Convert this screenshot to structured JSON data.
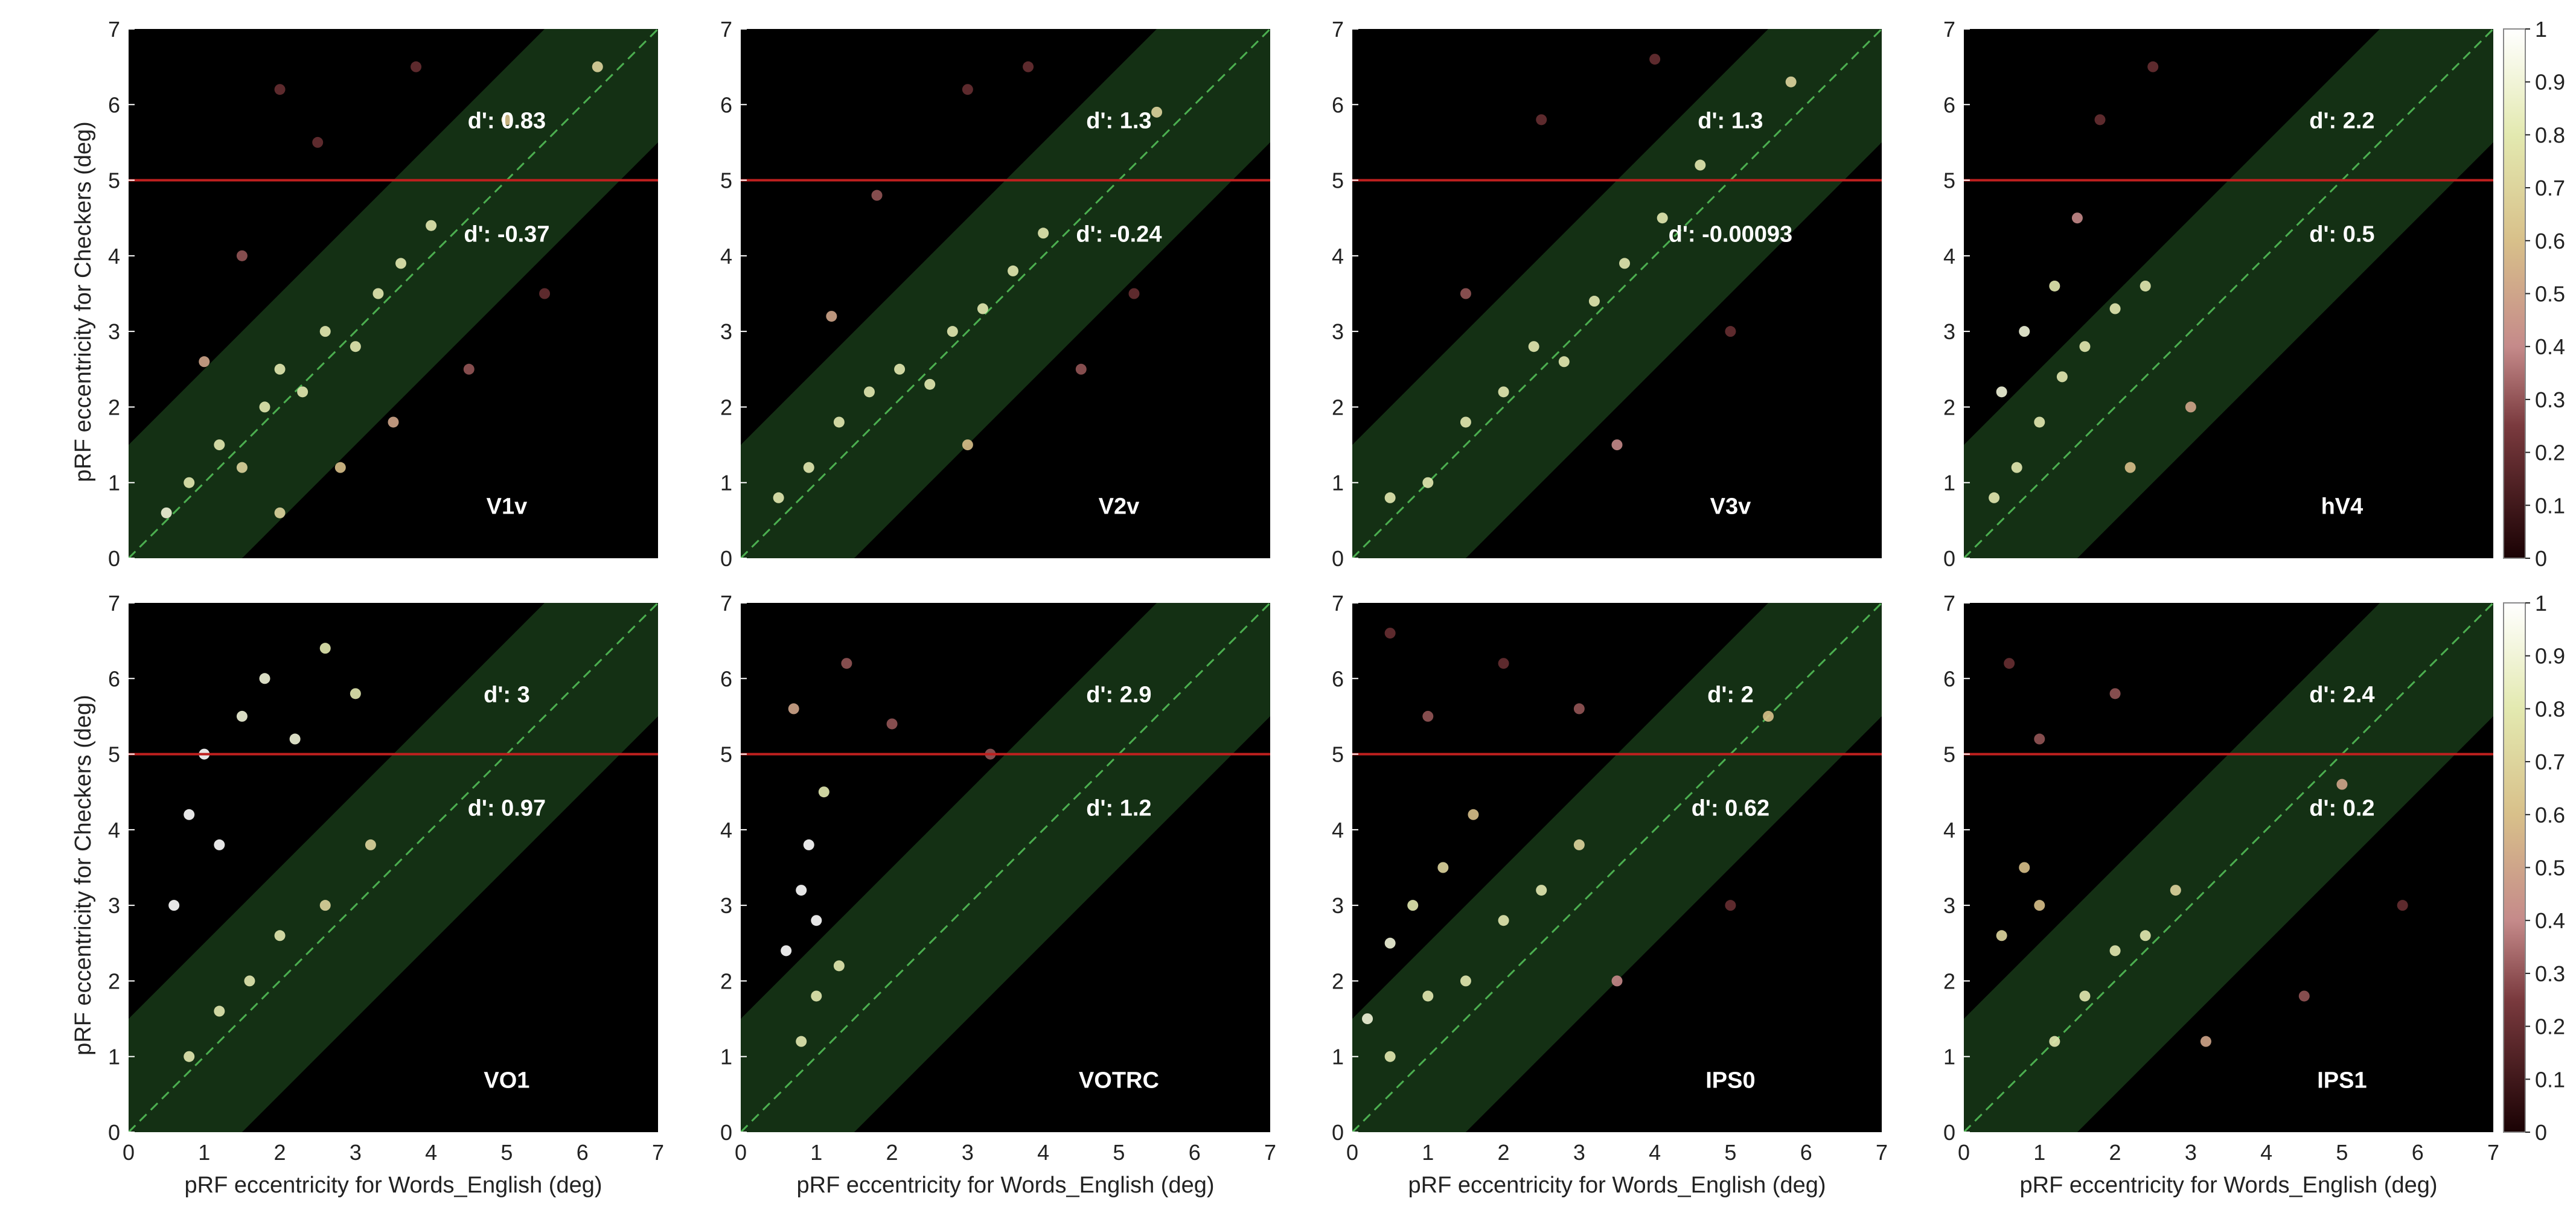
{
  "figure": {
    "shared_ylabel": "pRF eccentricity for Checkers (deg)",
    "shared_xlabel": "pRF eccentricity for Words_English (deg)",
    "colorbar_ticks": [
      "0",
      "0.1",
      "0.2",
      "0.3",
      "0.4",
      "0.5",
      "0.6",
      "0.7",
      "0.8",
      "0.9",
      "1"
    ]
  },
  "chart_data": [
    {
      "type": "scatter",
      "label": "V1v",
      "dprime_upper": "d': 0.83",
      "dprime_lower": "d': -0.37",
      "threshold_y": 5,
      "xlim": [
        0,
        7
      ],
      "ylim": [
        0,
        7
      ],
      "xticks": [
        "0",
        "1",
        "2",
        "3",
        "4",
        "5",
        "6",
        "7"
      ],
      "yticks": [
        "0",
        "1",
        "2",
        "3",
        "4",
        "5",
        "6",
        "7"
      ],
      "points": [
        [
          0.5,
          0.6,
          0.9
        ],
        [
          0.8,
          1.0,
          0.8
        ],
        [
          1.2,
          1.5,
          0.8
        ],
        [
          1.5,
          1.2,
          0.7
        ],
        [
          1.8,
          2.0,
          0.8
        ],
        [
          2.0,
          2.5,
          0.8
        ],
        [
          2.3,
          2.2,
          0.8
        ],
        [
          2.6,
          3.0,
          0.8
        ],
        [
          3.0,
          2.8,
          0.8
        ],
        [
          3.3,
          3.5,
          0.8
        ],
        [
          3.6,
          3.9,
          0.8
        ],
        [
          4.0,
          4.4,
          0.8
        ],
        [
          1.0,
          2.6,
          0.5
        ],
        [
          1.5,
          4.0,
          0.3
        ],
        [
          2.5,
          5.5,
          0.2
        ],
        [
          2.0,
          6.2,
          0.2
        ],
        [
          3.8,
          6.5,
          0.2
        ],
        [
          2.0,
          0.6,
          0.7
        ],
        [
          2.8,
          1.2,
          0.6
        ],
        [
          3.5,
          1.8,
          0.5
        ],
        [
          4.5,
          2.5,
          0.3
        ],
        [
          5.5,
          3.5,
          0.2
        ],
        [
          5.0,
          5.8,
          0.6
        ],
        [
          6.2,
          6.5,
          0.7
        ]
      ],
      "band_halfwidth": 1.5
    },
    {
      "type": "scatter",
      "label": "V2v",
      "dprime_upper": "d': 1.3",
      "dprime_lower": "d': -0.24",
      "threshold_y": 5,
      "xlim": [
        0,
        7
      ],
      "ylim": [
        0,
        7
      ],
      "xticks": [
        "0",
        "1",
        "2",
        "3",
        "4",
        "5",
        "6",
        "7"
      ],
      "yticks": [
        "0",
        "1",
        "2",
        "3",
        "4",
        "5",
        "6",
        "7"
      ],
      "points": [
        [
          0.5,
          0.8,
          0.8
        ],
        [
          0.9,
          1.2,
          0.8
        ],
        [
          1.3,
          1.8,
          0.8
        ],
        [
          1.7,
          2.2,
          0.8
        ],
        [
          2.1,
          2.5,
          0.8
        ],
        [
          2.5,
          2.3,
          0.8
        ],
        [
          2.8,
          3.0,
          0.8
        ],
        [
          3.2,
          3.3,
          0.8
        ],
        [
          3.6,
          3.8,
          0.8
        ],
        [
          4.0,
          4.3,
          0.8
        ],
        [
          1.2,
          3.2,
          0.5
        ],
        [
          1.8,
          4.8,
          0.3
        ],
        [
          3.0,
          6.2,
          0.2
        ],
        [
          3.8,
          6.5,
          0.2
        ],
        [
          3.0,
          1.5,
          0.6
        ],
        [
          4.5,
          2.5,
          0.3
        ],
        [
          5.2,
          3.5,
          0.2
        ],
        [
          5.5,
          5.9,
          0.7
        ]
      ],
      "band_halfwidth": 1.5
    },
    {
      "type": "scatter",
      "label": "V3v",
      "dprime_upper": "d': 1.3",
      "dprime_lower": "d': -0.00093",
      "threshold_y": 5,
      "xlim": [
        0,
        7
      ],
      "ylim": [
        0,
        7
      ],
      "xticks": [
        "0",
        "1",
        "2",
        "3",
        "4",
        "5",
        "6",
        "7"
      ],
      "yticks": [
        "0",
        "1",
        "2",
        "3",
        "4",
        "5",
        "6",
        "7"
      ],
      "points": [
        [
          0.5,
          0.8,
          0.8
        ],
        [
          1.0,
          1.0,
          0.8
        ],
        [
          1.5,
          1.8,
          0.8
        ],
        [
          2.0,
          2.2,
          0.8
        ],
        [
          2.4,
          2.8,
          0.8
        ],
        [
          2.8,
          2.6,
          0.8
        ],
        [
          3.2,
          3.4,
          0.8
        ],
        [
          3.6,
          3.9,
          0.8
        ],
        [
          4.1,
          4.5,
          0.8
        ],
        [
          4.6,
          5.2,
          0.8
        ],
        [
          1.5,
          3.5,
          0.3
        ],
        [
          2.5,
          5.8,
          0.2
        ],
        [
          4.0,
          6.6,
          0.2
        ],
        [
          3.5,
          1.5,
          0.4
        ],
        [
          5.0,
          3.0,
          0.2
        ],
        [
          5.8,
          6.3,
          0.7
        ]
      ],
      "band_halfwidth": 1.5
    },
    {
      "type": "scatter",
      "label": "hV4",
      "dprime_upper": "d': 2.2",
      "dprime_lower": "d': 0.5",
      "threshold_y": 5,
      "xlim": [
        0,
        7
      ],
      "ylim": [
        0,
        7
      ],
      "xticks": [
        "0",
        "1",
        "2",
        "3",
        "4",
        "5",
        "6",
        "7"
      ],
      "yticks": [
        "0",
        "1",
        "2",
        "3",
        "4",
        "5",
        "6",
        "7"
      ],
      "points": [
        [
          0.4,
          0.8,
          0.8
        ],
        [
          0.7,
          1.2,
          0.8
        ],
        [
          1.0,
          1.8,
          0.8
        ],
        [
          1.3,
          2.4,
          0.8
        ],
        [
          1.6,
          2.8,
          0.8
        ],
        [
          2.0,
          3.3,
          0.8
        ],
        [
          2.4,
          3.6,
          0.8
        ],
        [
          0.5,
          2.2,
          0.9
        ],
        [
          0.8,
          3.0,
          0.9
        ],
        [
          1.2,
          3.6,
          0.8
        ],
        [
          1.5,
          4.5,
          0.4
        ],
        [
          1.8,
          5.8,
          0.2
        ],
        [
          2.5,
          6.5,
          0.2
        ],
        [
          2.2,
          1.2,
          0.6
        ],
        [
          3.0,
          2.0,
          0.5
        ]
      ],
      "band_halfwidth": 1.5
    },
    {
      "type": "scatter",
      "label": "VO1",
      "dprime_upper": "d': 3",
      "dprime_lower": "d': 0.97",
      "threshold_y": 5,
      "xlim": [
        0,
        7
      ],
      "ylim": [
        0,
        7
      ],
      "xticks": [
        "0",
        "1",
        "2",
        "3",
        "4",
        "5",
        "6",
        "7"
      ],
      "yticks": [
        "0",
        "1",
        "2",
        "3",
        "4",
        "5",
        "6",
        "7"
      ],
      "points": [
        [
          0.6,
          3.0,
          1.0
        ],
        [
          0.8,
          4.2,
          1.0
        ],
        [
          1.0,
          5.0,
          1.0
        ],
        [
          1.2,
          3.8,
          1.0
        ],
        [
          1.5,
          5.5,
          0.9
        ],
        [
          1.8,
          6.0,
          0.9
        ],
        [
          2.2,
          5.2,
          0.9
        ],
        [
          2.6,
          6.4,
          0.8
        ],
        [
          3.0,
          5.8,
          0.8
        ],
        [
          0.8,
          1.0,
          0.8
        ],
        [
          1.2,
          1.6,
          0.8
        ],
        [
          1.6,
          2.0,
          0.8
        ],
        [
          2.0,
          2.6,
          0.8
        ],
        [
          2.6,
          3.0,
          0.7
        ],
        [
          3.2,
          3.8,
          0.7
        ]
      ],
      "band_halfwidth": 1.5
    },
    {
      "type": "scatter",
      "label": "VOTRC",
      "dprime_upper": "d': 2.9",
      "dprime_lower": "d': 1.2",
      "threshold_y": 5,
      "xlim": [
        0,
        7
      ],
      "ylim": [
        0,
        7
      ],
      "xticks": [
        "0",
        "1",
        "2",
        "3",
        "4",
        "5",
        "6",
        "7"
      ],
      "yticks": [
        "0",
        "1",
        "2",
        "3",
        "4",
        "5",
        "6",
        "7"
      ],
      "points": [
        [
          0.6,
          2.4,
          1.0
        ],
        [
          0.8,
          3.2,
          1.0
        ],
        [
          0.9,
          3.8,
          1.0
        ],
        [
          1.0,
          2.8,
          1.0
        ],
        [
          1.1,
          4.5,
          0.8
        ],
        [
          0.7,
          5.6,
          0.5
        ],
        [
          1.4,
          6.2,
          0.3
        ],
        [
          0.8,
          1.2,
          0.8
        ],
        [
          1.0,
          1.8,
          0.8
        ],
        [
          1.3,
          2.2,
          0.8
        ],
        [
          2.0,
          5.4,
          0.3
        ],
        [
          3.3,
          5.0,
          0.3
        ]
      ],
      "band_halfwidth": 1.5
    },
    {
      "type": "scatter",
      "label": "IPS0",
      "dprime_upper": "d': 2",
      "dprime_lower": "d': 0.62",
      "threshold_y": 5,
      "xlim": [
        0,
        7
      ],
      "ylim": [
        0,
        7
      ],
      "xticks": [
        "0",
        "1",
        "2",
        "3",
        "4",
        "5",
        "6",
        "7"
      ],
      "yticks": [
        "0",
        "1",
        "2",
        "3",
        "4",
        "5",
        "6",
        "7"
      ],
      "points": [
        [
          0.2,
          1.5,
          0.9
        ],
        [
          0.5,
          2.5,
          0.9
        ],
        [
          0.8,
          3.0,
          0.8
        ],
        [
          1.2,
          3.5,
          0.7
        ],
        [
          1.6,
          4.2,
          0.6
        ],
        [
          0.5,
          1.0,
          0.8
        ],
        [
          1.0,
          1.8,
          0.8
        ],
        [
          1.5,
          2.0,
          0.8
        ],
        [
          2.0,
          2.8,
          0.8
        ],
        [
          2.5,
          3.2,
          0.8
        ],
        [
          3.0,
          3.8,
          0.7
        ],
        [
          1.0,
          5.5,
          0.3
        ],
        [
          2.0,
          6.2,
          0.2
        ],
        [
          3.0,
          5.6,
          0.3
        ],
        [
          0.5,
          6.6,
          0.2
        ],
        [
          3.5,
          2.0,
          0.4
        ],
        [
          5.0,
          3.0,
          0.2
        ],
        [
          5.5,
          5.5,
          0.6
        ]
      ],
      "band_halfwidth": 1.5
    },
    {
      "type": "scatter",
      "label": "IPS1",
      "dprime_upper": "d': 2.4",
      "dprime_lower": "d': 0.2",
      "threshold_y": 5,
      "xlim": [
        0,
        7
      ],
      "ylim": [
        0,
        7
      ],
      "xticks": [
        "0",
        "1",
        "2",
        "3",
        "4",
        "5",
        "6",
        "7"
      ],
      "yticks": [
        "0",
        "1",
        "2",
        "3",
        "4",
        "5",
        "6",
        "7"
      ],
      "points": [
        [
          0.5,
          2.6,
          0.7
        ],
        [
          0.8,
          3.5,
          0.6
        ],
        [
          1.0,
          3.0,
          0.6
        ],
        [
          1.2,
          1.2,
          0.8
        ],
        [
          1.6,
          1.8,
          0.8
        ],
        [
          2.0,
          2.4,
          0.8
        ],
        [
          2.4,
          2.6,
          0.8
        ],
        [
          2.8,
          3.2,
          0.7
        ],
        [
          1.0,
          5.2,
          0.3
        ],
        [
          0.6,
          6.2,
          0.2
        ],
        [
          2.0,
          5.8,
          0.3
        ],
        [
          3.2,
          1.2,
          0.5
        ],
        [
          4.5,
          1.8,
          0.3
        ],
        [
          5.8,
          3.0,
          0.2
        ],
        [
          5.0,
          4.6,
          0.5
        ]
      ],
      "band_halfwidth": 1.5
    }
  ]
}
